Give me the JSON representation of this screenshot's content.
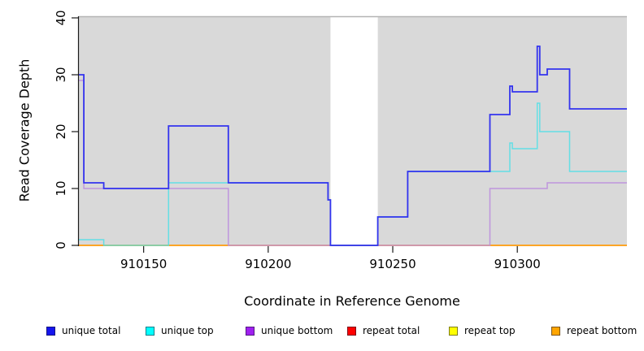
{
  "chart_data": {
    "type": "line",
    "step": true,
    "title": "",
    "xlabel": "Coordinate in Reference Genome",
    "ylabel": "Read Coverage Depth",
    "xlim": [
      910124,
      910344
    ],
    "ylim": [
      0,
      40
    ],
    "x_ticks": [
      910150,
      910200,
      910250,
      910300
    ],
    "y_ticks": [
      0,
      10,
      20,
      30,
      40
    ],
    "grid": false,
    "legend_position": "bottom-horizontal",
    "plot_bg_color": "#d9d9d9",
    "gap_region": {
      "start": 910225,
      "end": 910244
    },
    "series": [
      {
        "name": "unique total",
        "line_color": "#3333ee",
        "legend_color": "#1414ee",
        "points": [
          [
            910124,
            30
          ],
          [
            910126,
            11
          ],
          [
            910134,
            10
          ],
          [
            910160,
            21
          ],
          [
            910184,
            11
          ],
          [
            910224,
            8
          ],
          [
            910225,
            0
          ],
          [
            910244,
            5
          ],
          [
            910256,
            13
          ],
          [
            910289,
            23
          ],
          [
            910297,
            28
          ],
          [
            910298,
            27
          ],
          [
            910308,
            35
          ],
          [
            910309,
            30
          ],
          [
            910312,
            31
          ],
          [
            910321,
            24
          ],
          [
            910344,
            24
          ]
        ]
      },
      {
        "name": "unique top",
        "line_color": "#4fdfe6",
        "legend_color": "#00ffff",
        "points": [
          [
            910124,
            1
          ],
          [
            910134,
            0
          ],
          [
            910160,
            11
          ],
          [
            910224,
            8
          ],
          [
            910225,
            0
          ],
          [
            910244,
            5
          ],
          [
            910256,
            13
          ],
          [
            910297,
            18
          ],
          [
            910298,
            17
          ],
          [
            910308,
            25
          ],
          [
            910309,
            20
          ],
          [
            910321,
            13
          ],
          [
            910344,
            13
          ]
        ]
      },
      {
        "name": "unique bottom",
        "line_color": "#bd8fde",
        "legend_color": "#a020f0",
        "points": [
          [
            910124,
            29
          ],
          [
            910126,
            10
          ],
          [
            910184,
            0
          ],
          [
            910289,
            10
          ],
          [
            910312,
            11
          ],
          [
            910344,
            11
          ]
        ]
      },
      {
        "name": "repeat total",
        "line_color": "#dd2d40",
        "legend_color": "#ff0000",
        "points": [
          [
            910124,
            0
          ],
          [
            910344,
            0
          ]
        ]
      },
      {
        "name": "repeat top",
        "line_color": "#ffff33",
        "legend_color": "#ffff00",
        "points": [
          [
            910124,
            0
          ],
          [
            910344,
            0
          ]
        ]
      },
      {
        "name": "repeat bottom",
        "line_color": "#ff9912",
        "legend_color": "#ffa500",
        "points": [
          [
            910124,
            0
          ],
          [
            910344,
            0
          ]
        ]
      }
    ]
  }
}
